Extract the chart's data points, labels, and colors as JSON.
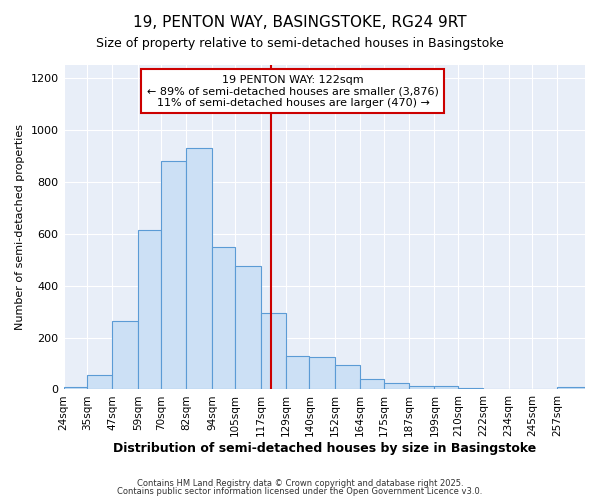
{
  "title_line1": "19, PENTON WAY, BASINGSTOKE, RG24 9RT",
  "title_line2": "Size of property relative to semi-detached houses in Basingstoke",
  "xlabel": "Distribution of semi-detached houses by size in Basingstoke",
  "ylabel": "Number of semi-detached properties",
  "bin_labels": [
    "24sqm",
    "35sqm",
    "47sqm",
    "59sqm",
    "70sqm",
    "82sqm",
    "94sqm",
    "105sqm",
    "117sqm",
    "129sqm",
    "140sqm",
    "152sqm",
    "164sqm",
    "175sqm",
    "187sqm",
    "199sqm",
    "210sqm",
    "222sqm",
    "234sqm",
    "245sqm",
    "257sqm"
  ],
  "bin_edges": [
    24,
    35,
    47,
    59,
    70,
    82,
    94,
    105,
    117,
    129,
    140,
    152,
    164,
    175,
    187,
    199,
    210,
    222,
    234,
    245,
    257,
    270
  ],
  "counts": [
    10,
    55,
    265,
    615,
    880,
    930,
    550,
    475,
    295,
    130,
    125,
    95,
    40,
    25,
    15,
    15,
    5,
    3,
    2,
    1,
    10
  ],
  "bar_facecolor": "#cce0f5",
  "bar_edgecolor": "#5b9bd5",
  "vline_x": 122,
  "vline_color": "#cc0000",
  "annotation_title": "19 PENTON WAY: 122sqm",
  "annotation_line1": "← 89% of semi-detached houses are smaller (3,876)",
  "annotation_line2": "11% of semi-detached houses are larger (470) →",
  "annotation_box_edgecolor": "#cc0000",
  "ylim": [
    0,
    1250
  ],
  "yticks": [
    0,
    200,
    400,
    600,
    800,
    1000,
    1200
  ],
  "plot_bg_color": "#e8eef8",
  "fig_bg_color": "#ffffff",
  "grid_color": "#ffffff",
  "footer_line1": "Contains HM Land Registry data © Crown copyright and database right 2025.",
  "footer_line2": "Contains public sector information licensed under the Open Government Licence v3.0."
}
